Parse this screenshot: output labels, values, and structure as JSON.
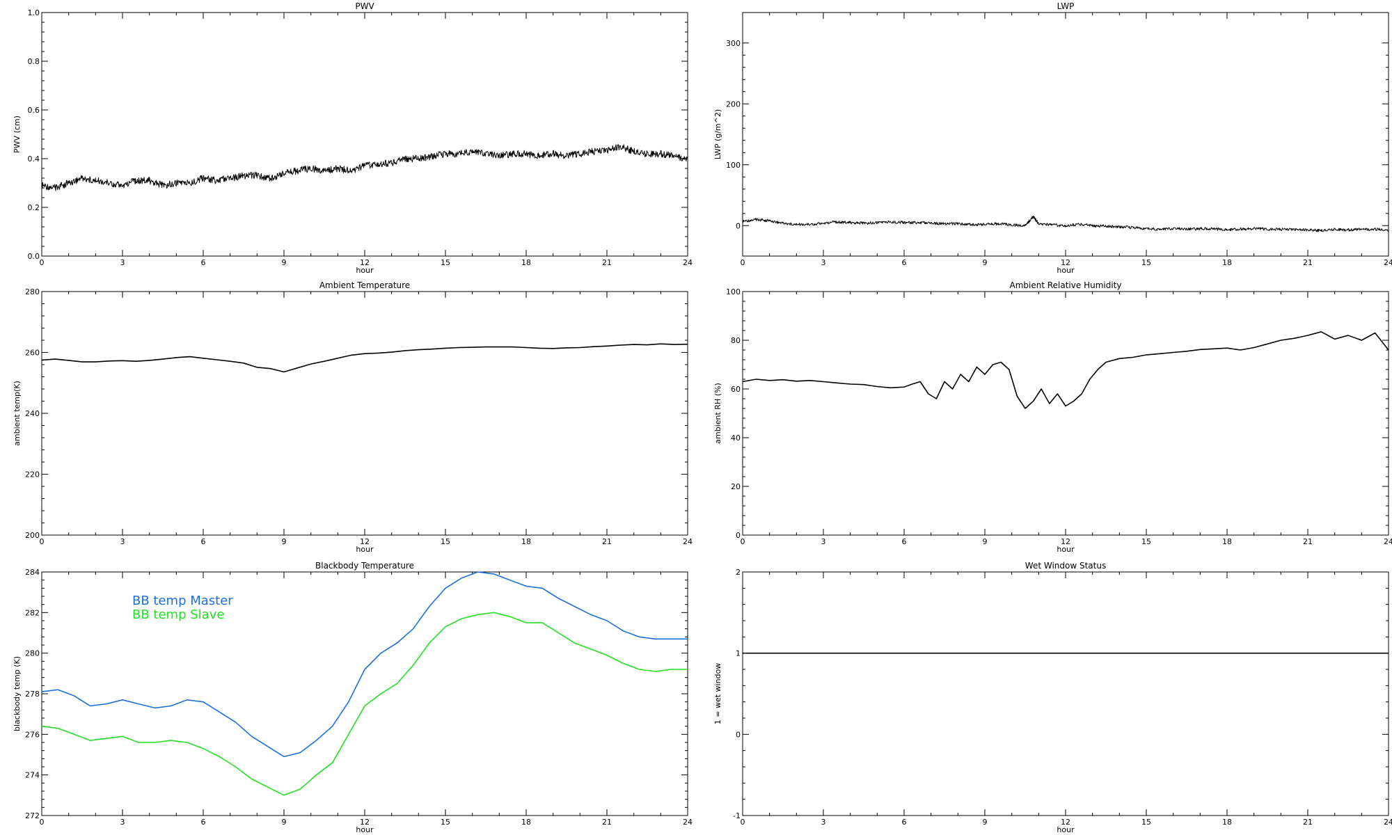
{
  "chart_data": [
    {
      "id": "pwv",
      "type": "line",
      "title": "PWV",
      "xlabel": "hour",
      "ylabel": "PWV (cm)",
      "xlim": [
        0,
        24
      ],
      "ylim": [
        0,
        1
      ],
      "xticks": [
        "0",
        "3",
        "6",
        "9",
        "12",
        "15",
        "18",
        "21",
        "24"
      ],
      "yticks": [
        "0.0",
        "0.2",
        "0.4",
        "0.6",
        "0.8",
        "1.0"
      ],
      "series": [
        {
          "color": "#000000",
          "x": [
            0,
            0.5,
            1,
            1.5,
            2,
            2.5,
            3,
            3.5,
            4,
            4.5,
            5,
            5.5,
            6,
            6.5,
            7,
            7.5,
            8,
            8.5,
            9,
            9.5,
            10,
            10.5,
            11,
            11.5,
            12,
            12.5,
            13,
            13.5,
            14,
            14.5,
            15,
            15.5,
            16,
            16.5,
            17,
            17.5,
            18,
            18.5,
            19,
            19.5,
            20,
            20.5,
            21,
            21.5,
            22,
            22.5,
            23,
            23.5,
            24
          ],
          "y": [
            0.29,
            0.28,
            0.3,
            0.32,
            0.31,
            0.3,
            0.29,
            0.31,
            0.31,
            0.29,
            0.3,
            0.3,
            0.32,
            0.31,
            0.32,
            0.33,
            0.33,
            0.32,
            0.34,
            0.35,
            0.36,
            0.35,
            0.36,
            0.35,
            0.37,
            0.38,
            0.38,
            0.4,
            0.4,
            0.41,
            0.42,
            0.42,
            0.43,
            0.42,
            0.41,
            0.42,
            0.42,
            0.41,
            0.42,
            0.41,
            0.42,
            0.43,
            0.43,
            0.45,
            0.43,
            0.42,
            0.42,
            0.41,
            0.4
          ]
        }
      ]
    },
    {
      "id": "lwp",
      "type": "line",
      "title": "LWP",
      "xlabel": "hour",
      "ylabel": "LWP (g/m^2)",
      "xlim": [
        0,
        24
      ],
      "ylim": [
        -50,
        350
      ],
      "xticks": [
        "0",
        "3",
        "6",
        "9",
        "12",
        "15",
        "18",
        "21",
        "24"
      ],
      "yticks": [
        "0",
        "100",
        "200",
        "300"
      ],
      "series": [
        {
          "color": "#000000",
          "x": [
            0,
            0.5,
            1,
            1.5,
            2,
            2.5,
            3,
            3.5,
            4,
            4.5,
            5,
            5.5,
            6,
            6.5,
            7,
            7.5,
            8,
            8.5,
            9,
            9.5,
            10,
            10.5,
            10.8,
            11,
            11.5,
            12,
            12.5,
            13,
            13.5,
            14,
            14.5,
            15,
            15.5,
            16,
            16.5,
            17,
            17.5,
            18,
            18.5,
            19,
            19.5,
            20,
            20.5,
            21,
            21.5,
            22,
            22.5,
            23,
            23.5,
            24
          ],
          "y": [
            7,
            10,
            8,
            4,
            2,
            2,
            4,
            6,
            5,
            4,
            5,
            6,
            5,
            5,
            4,
            3,
            3,
            2,
            2,
            3,
            1,
            0,
            15,
            3,
            1,
            0,
            2,
            0,
            -1,
            -2,
            -3,
            -5,
            -6,
            -5,
            -6,
            -5,
            -5,
            -7,
            -6,
            -5,
            -6,
            -6,
            -7,
            -7,
            -8,
            -6,
            -7,
            -6,
            -6,
            -7
          ]
        }
      ]
    },
    {
      "id": "ambient-temp",
      "type": "line",
      "title": "Ambient Temperature",
      "xlabel": "hour",
      "ylabel": "ambient temp(K)",
      "xlim": [
        0,
        24
      ],
      "ylim": [
        200,
        280
      ],
      "xticks": [
        "0",
        "3",
        "6",
        "9",
        "12",
        "15",
        "18",
        "21",
        "24"
      ],
      "yticks": [
        "200",
        "220",
        "240",
        "260",
        "280"
      ],
      "series": [
        {
          "color": "#000000",
          "x": [
            0,
            0.5,
            1,
            1.5,
            2,
            2.5,
            3,
            3.5,
            4,
            4.5,
            5,
            5.5,
            6,
            6.5,
            7,
            7.5,
            8,
            8.5,
            9,
            9.5,
            10,
            10.5,
            11,
            11.5,
            12,
            12.5,
            13,
            13.5,
            14,
            14.5,
            15,
            15.5,
            16,
            16.5,
            17,
            17.5,
            18,
            18.5,
            19,
            19.5,
            20,
            20.5,
            21,
            21.5,
            22,
            22.5,
            23,
            23.5,
            24
          ],
          "y": [
            257.5,
            257.8,
            257.4,
            256.9,
            256.9,
            257.2,
            257.3,
            257.1,
            257.4,
            257.8,
            258.3,
            258.6,
            258.1,
            257.6,
            257.1,
            256.5,
            255.1,
            254.7,
            253.6,
            254.9,
            256.2,
            257.1,
            258.1,
            259.1,
            259.6,
            259.8,
            260.1,
            260.6,
            260.9,
            261.1,
            261.4,
            261.6,
            261.7,
            261.8,
            261.8,
            261.8,
            261.6,
            261.4,
            261.3,
            261.5,
            261.6,
            261.9,
            262.1,
            262.4,
            262.6,
            262.5,
            262.8,
            262.6,
            262.7
          ]
        }
      ]
    },
    {
      "id": "ambient-rh",
      "type": "line",
      "title": "Ambient Relative Humidity",
      "xlabel": "hour",
      "ylabel": "ambient RH (%)",
      "xlim": [
        0,
        24
      ],
      "ylim": [
        0,
        100
      ],
      "xticks": [
        "0",
        "3",
        "6",
        "9",
        "12",
        "15",
        "18",
        "21",
        "24"
      ],
      "yticks": [
        "0",
        "20",
        "40",
        "60",
        "80",
        "100"
      ],
      "series": [
        {
          "color": "#000000",
          "x": [
            0,
            0.5,
            1,
            1.5,
            2,
            2.5,
            3,
            3.5,
            4,
            4.5,
            5,
            5.5,
            6,
            6.3,
            6.6,
            6.9,
            7.2,
            7.5,
            7.8,
            8.1,
            8.4,
            8.7,
            9,
            9.3,
            9.6,
            9.9,
            10.2,
            10.5,
            10.8,
            11.1,
            11.4,
            11.7,
            12,
            12.3,
            12.6,
            12.9,
            13.2,
            13.5,
            14,
            14.5,
            15,
            15.5,
            16,
            16.5,
            17,
            17.5,
            18,
            18.5,
            19,
            19.5,
            20,
            20.5,
            21,
            21.5,
            22,
            22.5,
            23,
            23.5,
            24
          ],
          "y": [
            63,
            64,
            63.5,
            63.8,
            63.2,
            63.5,
            63,
            62.5,
            62,
            61.8,
            61,
            60.5,
            60.8,
            62,
            63,
            58,
            56,
            63,
            60,
            66,
            63,
            69,
            66,
            70,
            71,
            68,
            57,
            52,
            55,
            60,
            54,
            58,
            53,
            55,
            58,
            64,
            68,
            71,
            72.5,
            73,
            74,
            74.5,
            75,
            75.5,
            76.2,
            76.5,
            76.8,
            76,
            77,
            78.5,
            80,
            80.8,
            82,
            83.5,
            80.5,
            82,
            80,
            83,
            76
          ]
        }
      ]
    },
    {
      "id": "bb-temp",
      "type": "line",
      "title": "Blackbody Temperature",
      "xlabel": "hour",
      "ylabel": "blackbody temp (K)",
      "xlim": [
        0,
        24
      ],
      "ylim": [
        272,
        284
      ],
      "xticks": [
        "0",
        "3",
        "6",
        "9",
        "12",
        "15",
        "18",
        "21",
        "24"
      ],
      "yticks": [
        "272",
        "274",
        "276",
        "278",
        "280",
        "282",
        "284"
      ],
      "legend": [
        "BB temp Master",
        "BB temp Slave"
      ],
      "series": [
        {
          "name": "BB temp Master",
          "color": "#1a70e0",
          "x": [
            0,
            0.6,
            1.2,
            1.8,
            2.4,
            3,
            3.6,
            4.2,
            4.8,
            5.4,
            6,
            6.6,
            7.2,
            7.8,
            8.4,
            9,
            9.6,
            10.2,
            10.8,
            11.4,
            12,
            12.6,
            13.2,
            13.8,
            14.4,
            15,
            15.6,
            16.2,
            16.8,
            17.4,
            18,
            18.6,
            19.2,
            19.8,
            20.4,
            21,
            21.6,
            22.2,
            22.8,
            23.4,
            24
          ],
          "y": [
            278.1,
            278.2,
            277.9,
            277.4,
            277.5,
            277.7,
            277.5,
            277.3,
            277.4,
            277.7,
            277.6,
            277.1,
            276.6,
            275.9,
            275.4,
            274.9,
            275.1,
            275.7,
            276.4,
            277.6,
            279.2,
            280.0,
            280.5,
            281.2,
            282.3,
            283.2,
            283.7,
            284.0,
            283.9,
            283.6,
            283.3,
            283.2,
            282.7,
            282.3,
            281.9,
            281.6,
            281.1,
            280.8,
            280.7,
            280.7,
            280.7
          ]
        },
        {
          "name": "BB temp Slave",
          "color": "#22e022",
          "x": [
            0,
            0.6,
            1.2,
            1.8,
            2.4,
            3,
            3.6,
            4.2,
            4.8,
            5.4,
            6,
            6.6,
            7.2,
            7.8,
            8.4,
            9,
            9.6,
            10.2,
            10.8,
            11.4,
            12,
            12.6,
            13.2,
            13.8,
            14.4,
            15,
            15.6,
            16.2,
            16.8,
            17.4,
            18,
            18.6,
            19.2,
            19.8,
            20.4,
            21,
            21.6,
            22.2,
            22.8,
            23.4,
            24
          ],
          "y": [
            276.4,
            276.3,
            276.0,
            275.7,
            275.8,
            275.9,
            275.6,
            275.6,
            275.7,
            275.6,
            275.3,
            274.9,
            274.4,
            273.8,
            273.4,
            273.0,
            273.3,
            274.0,
            274.6,
            276.0,
            277.4,
            278.0,
            278.5,
            279.4,
            280.5,
            281.3,
            281.7,
            281.9,
            282.0,
            281.8,
            281.5,
            281.5,
            281.0,
            280.5,
            280.2,
            279.9,
            279.5,
            279.2,
            279.1,
            279.2,
            279.2
          ]
        }
      ]
    },
    {
      "id": "wet-window",
      "type": "line",
      "title": "Wet Window Status",
      "xlabel": "hour",
      "ylabel": "1 = wet window",
      "xlim": [
        0,
        24
      ],
      "ylim": [
        -1,
        2
      ],
      "xticks": [
        "0",
        "3",
        "6",
        "9",
        "12",
        "15",
        "18",
        "21",
        "24"
      ],
      "yticks": [
        "-1",
        "0",
        "1",
        "2"
      ],
      "series": [
        {
          "color": "#000000",
          "x": [
            0,
            24
          ],
          "y": [
            1,
            1
          ]
        }
      ]
    }
  ]
}
